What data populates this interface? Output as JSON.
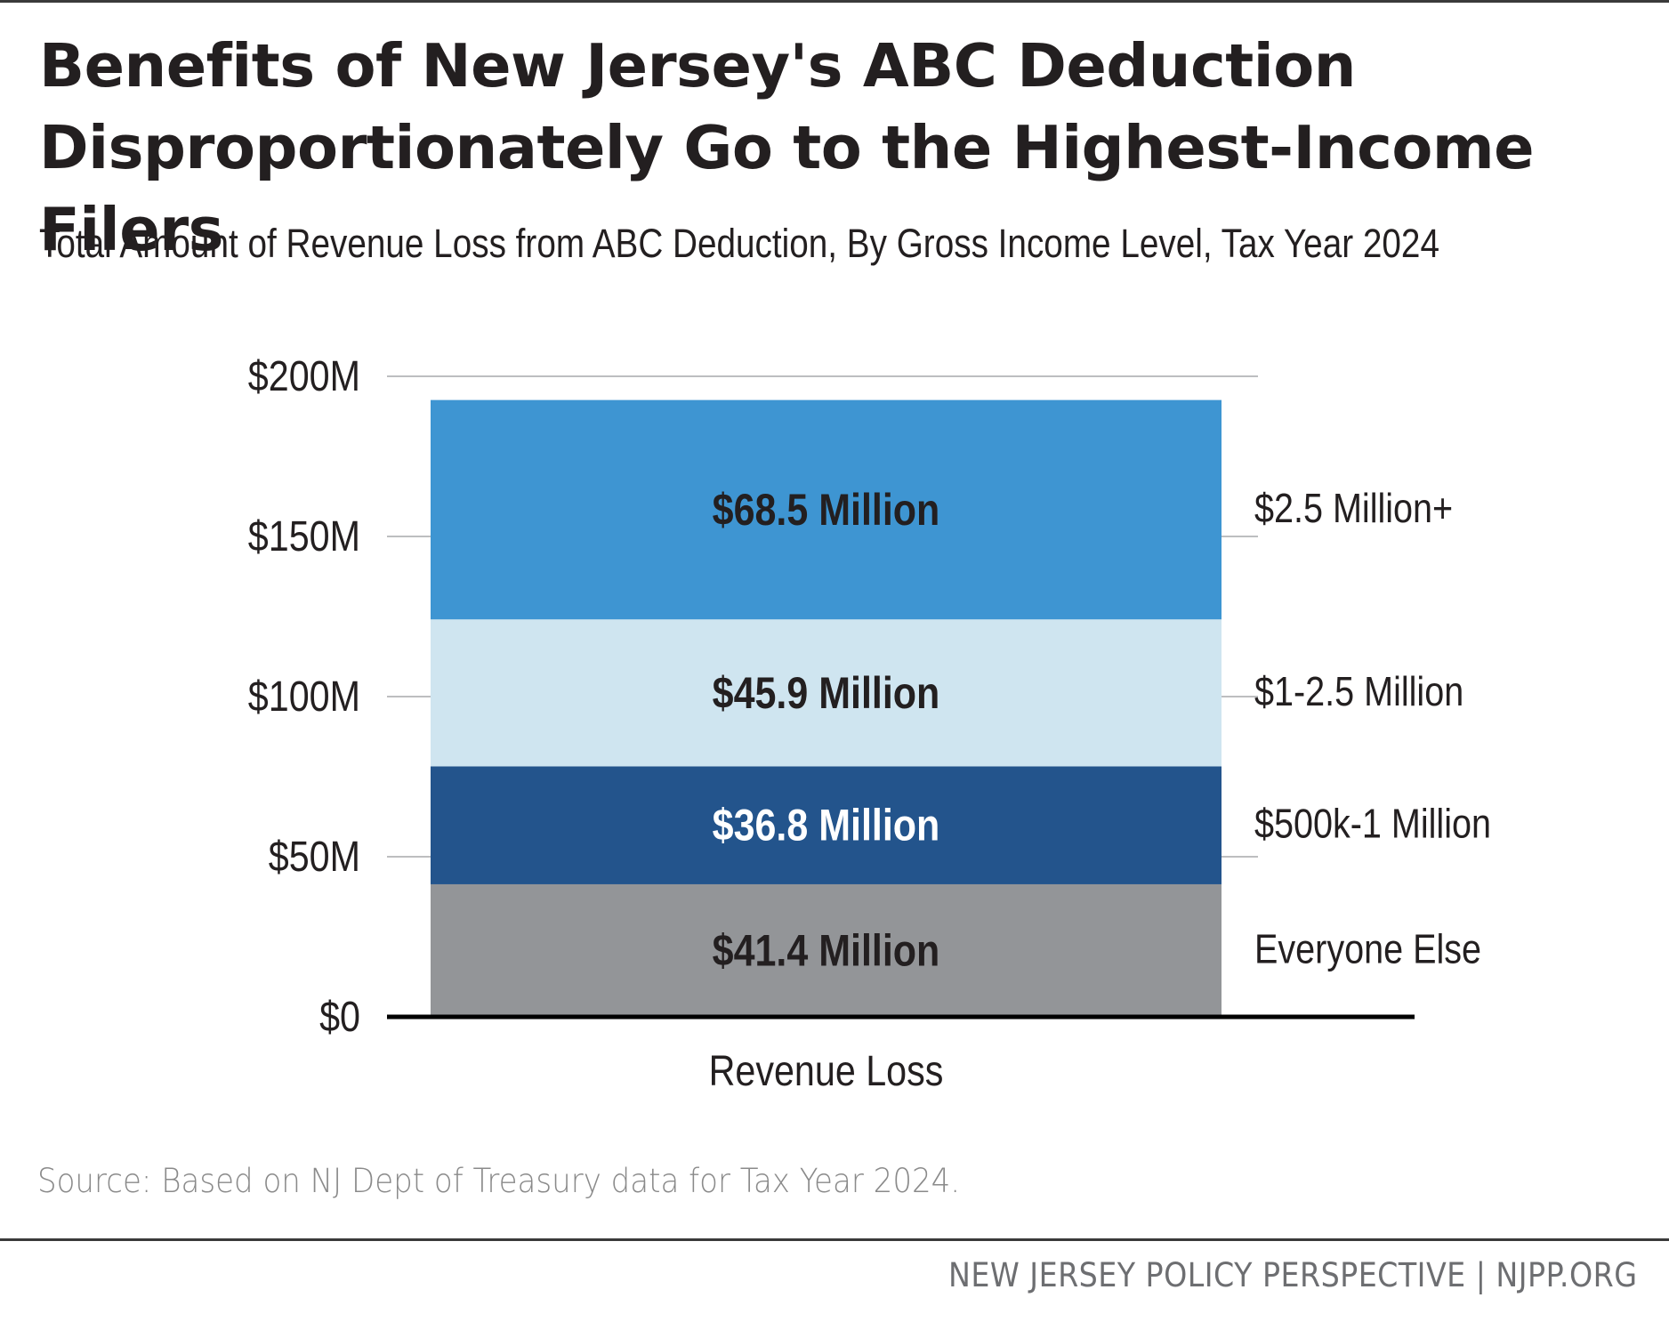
{
  "header": {
    "title_line1": "Benefits of New Jersey's ABC Deduction",
    "title_line2": "Disproportionately Go to the Highest-Income Filers",
    "subtitle": "Total Amount of Revenue Loss from ABC Deduction, By Gross Income Level, Tax Year 2024"
  },
  "chart_data": {
    "type": "bar",
    "stacked": true,
    "categories": [
      "Revenue Loss"
    ],
    "series": [
      {
        "name": "Everyone Else",
        "values": [
          41.4
        ],
        "label": "$41.4 Million",
        "color": "#939598",
        "label_color": "#231f20"
      },
      {
        "name": "$500k-1 Million",
        "values": [
          36.8
        ],
        "label": "$36.8 Million",
        "color": "#23548c",
        "label_color": "#ffffff"
      },
      {
        "name": "$1-2.5 Million",
        "values": [
          45.9
        ],
        "label": "$45.9 Million",
        "color": "#cfe5f0",
        "label_color": "#231f20"
      },
      {
        "name": "$2.5 Million+",
        "values": [
          68.5
        ],
        "label": "$68.5 Million",
        "color": "#3e95d2",
        "label_color": "#231f20"
      }
    ],
    "ylim": [
      0,
      200
    ],
    "yticks": [
      {
        "value": 0,
        "label": "$0"
      },
      {
        "value": 50,
        "label": "$50M"
      },
      {
        "value": 100,
        "label": "$100M"
      },
      {
        "value": 150,
        "label": "$150M"
      },
      {
        "value": 200,
        "label": "$200M"
      }
    ],
    "legend_placement": "right, inline beside segments",
    "grid": true
  },
  "source": "Source: Based on NJ Dept of Treasury data for Tax Year 2024.",
  "footer": "NEW JERSEY POLICY PERSPECTIVE | NJPP.ORG"
}
